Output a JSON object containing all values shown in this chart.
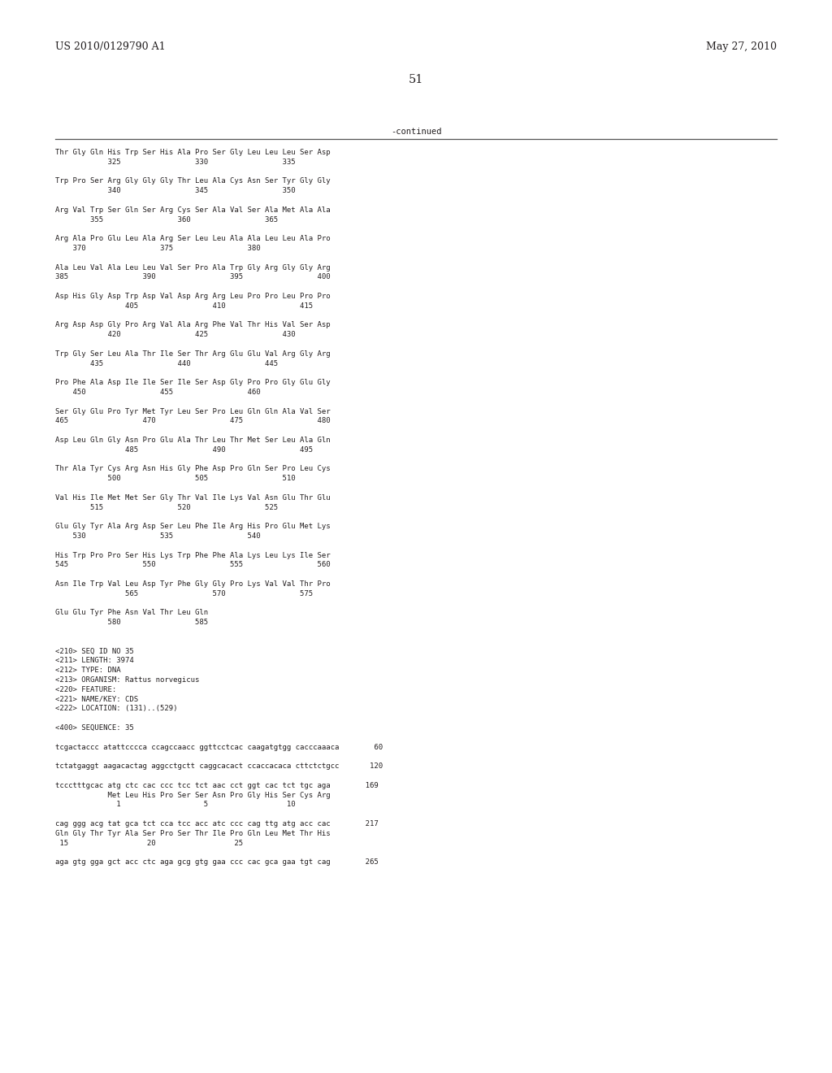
{
  "header_left": "US 2010/0129790 A1",
  "header_right": "May 27, 2010",
  "page_number": "51",
  "continued_text": "-continued",
  "background_color": "#ffffff",
  "text_color": "#231f20",
  "content_lines": [
    "Thr Gly Gln His Trp Ser His Ala Pro Ser Gly Leu Leu Leu Ser Asp",
    "            325                 330                 335",
    "",
    "Trp Pro Ser Arg Gly Gly Gly Thr Leu Ala Cys Asn Ser Tyr Gly Gly",
    "            340                 345                 350",
    "",
    "Arg Val Trp Ser Gln Ser Arg Cys Ser Ala Val Ser Ala Met Ala Ala",
    "        355                 360                 365",
    "",
    "Arg Ala Pro Glu Leu Ala Arg Ser Leu Leu Ala Ala Leu Leu Ala Pro",
    "    370                 375                 380",
    "",
    "Ala Leu Val Ala Leu Leu Val Ser Pro Ala Trp Gly Arg Gly Gly Arg",
    "385                 390                 395                 400",
    "",
    "Asp His Gly Asp Trp Asp Val Asp Arg Arg Leu Pro Pro Leu Pro Pro",
    "                405                 410                 415",
    "",
    "Arg Asp Asp Gly Pro Arg Val Ala Arg Phe Val Thr His Val Ser Asp",
    "            420                 425                 430",
    "",
    "Trp Gly Ser Leu Ala Thr Ile Ser Thr Arg Glu Glu Val Arg Gly Arg",
    "        435                 440                 445",
    "",
    "Pro Phe Ala Asp Ile Ile Ser Ile Ser Asp Gly Pro Pro Gly Glu Gly",
    "    450                 455                 460",
    "",
    "Ser Gly Glu Pro Tyr Met Tyr Leu Ser Pro Leu Gln Gln Ala Val Ser",
    "465                 470                 475                 480",
    "",
    "Asp Leu Gln Gly Asn Pro Glu Ala Thr Leu Thr Met Ser Leu Ala Gln",
    "                485                 490                 495",
    "",
    "Thr Ala Tyr Cys Arg Asn His Gly Phe Asp Pro Gln Ser Pro Leu Cys",
    "            500                 505                 510",
    "",
    "Val His Ile Met Met Ser Gly Thr Val Ile Lys Val Asn Glu Thr Glu",
    "        515                 520                 525",
    "",
    "Glu Gly Tyr Ala Arg Asp Ser Leu Phe Ile Arg His Pro Glu Met Lys",
    "    530                 535                 540",
    "",
    "His Trp Pro Pro Ser His Lys Trp Phe Phe Ala Lys Leu Lys Ile Ser",
    "545                 550                 555                 560",
    "",
    "Asn Ile Trp Val Leu Asp Tyr Phe Gly Gly Pro Lys Val Val Thr Pro",
    "                565                 570                 575",
    "",
    "Glu Glu Tyr Phe Asn Val Thr Leu Gln",
    "            580                 585",
    "",
    "",
    "<210> SEQ ID NO 35",
    "<211> LENGTH: 3974",
    "<212> TYPE: DNA",
    "<213> ORGANISM: Rattus norvegicus",
    "<220> FEATURE:",
    "<221> NAME/KEY: CDS",
    "<222> LOCATION: (131)..(529)",
    "",
    "<400> SEQUENCE: 35",
    "",
    "tcgactaccc atattcccca ccagccaacc ggttcctcac caagatgtgg cacccaaaca        60",
    "",
    "tctatgaggt aagacactag aggcctgctt caggcacact ccaccacaca cttctctgcc       120",
    "",
    "tccctttgcac atg ctc cac ccc tcc tct aac cct ggt cac tct tgc aga        169",
    "            Met Leu His Pro Ser Ser Asn Pro Gly His Ser Cys Arg",
    "              1                   5                  10",
    "",
    "cag ggg acg tat gca tct cca tcc acc atc ccc cag ttg atg acc cac        217",
    "Gln Gly Thr Tyr Ala Ser Pro Ser Thr Ile Pro Gln Leu Met Thr His",
    " 15                  20                  25",
    "",
    "aga gtg gga gct acc ctc aga gcg gtg gaa ccc cac gca gaa tgt cag        265"
  ],
  "header_font_size": 9.0,
  "page_num_font_size": 10.5,
  "body_font_size": 6.5,
  "continued_font_size": 7.5
}
